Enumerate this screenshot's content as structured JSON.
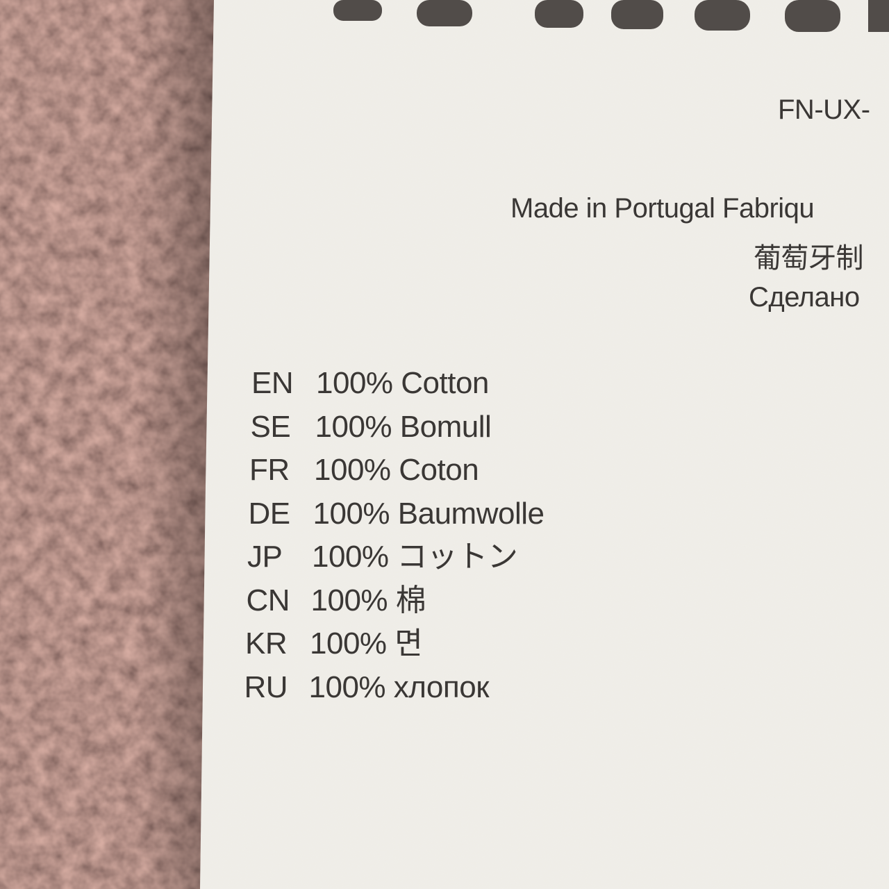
{
  "label_code": "FN-UX-",
  "origin": {
    "lines": [
      "Made in Portugal  Fabriqu",
      "葡萄牙制",
      "Сделано"
    ]
  },
  "composition": {
    "rows": [
      {
        "code": "EN",
        "text": "100% Cotton"
      },
      {
        "code": "SE",
        "text": "100% Bomull"
      },
      {
        "code": "FR",
        "text": "100% Coton"
      },
      {
        "code": "DE",
        "text": "100% Baumwolle"
      },
      {
        "code": "JP",
        "text": "100% コットン"
      },
      {
        "code": "CN",
        "text": "100% 棉"
      },
      {
        "code": "KR",
        "text": "100% 면"
      },
      {
        "code": "RU",
        "text": "100% хлопок"
      }
    ]
  }
}
